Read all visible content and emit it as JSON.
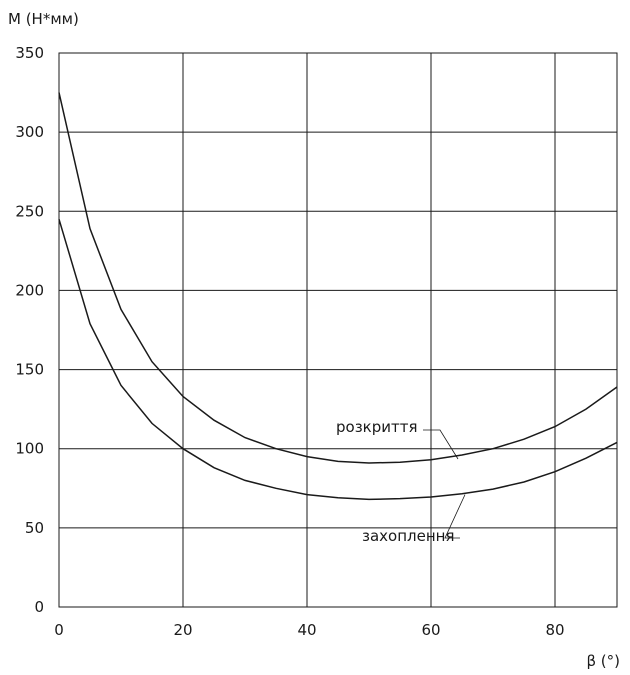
{
  "chart_data": {
    "type": "line",
    "xlabel": "β (°)",
    "ylabel": "M (Н*мм)",
    "xlim": [
      0,
      90
    ],
    "ylim": [
      0,
      350
    ],
    "xticks": [
      0,
      20,
      40,
      60,
      80
    ],
    "yticks": [
      0,
      50,
      100,
      150,
      200,
      250,
      300,
      350
    ],
    "grid": true,
    "series": [
      {
        "name": "розкриття",
        "x": [
          0,
          5,
          10,
          15,
          20,
          25,
          30,
          35,
          40,
          45,
          50,
          55,
          60,
          65,
          70,
          75,
          80,
          85,
          90
        ],
        "y": [
          325,
          239,
          188,
          155,
          133,
          118,
          107,
          100,
          95,
          92,
          91,
          91.5,
          93,
          96,
          100,
          106,
          114,
          125,
          139
        ]
      },
      {
        "name": "захоплення",
        "x": [
          0,
          5,
          10,
          15,
          20,
          25,
          30,
          35,
          40,
          45,
          50,
          55,
          60,
          65,
          70,
          75,
          80,
          85,
          90
        ],
        "y": [
          245,
          179,
          140,
          116,
          100,
          88,
          80,
          75,
          71,
          69,
          68,
          68.5,
          69.5,
          71.5,
          74.5,
          79,
          85.5,
          94,
          104
        ]
      }
    ]
  }
}
